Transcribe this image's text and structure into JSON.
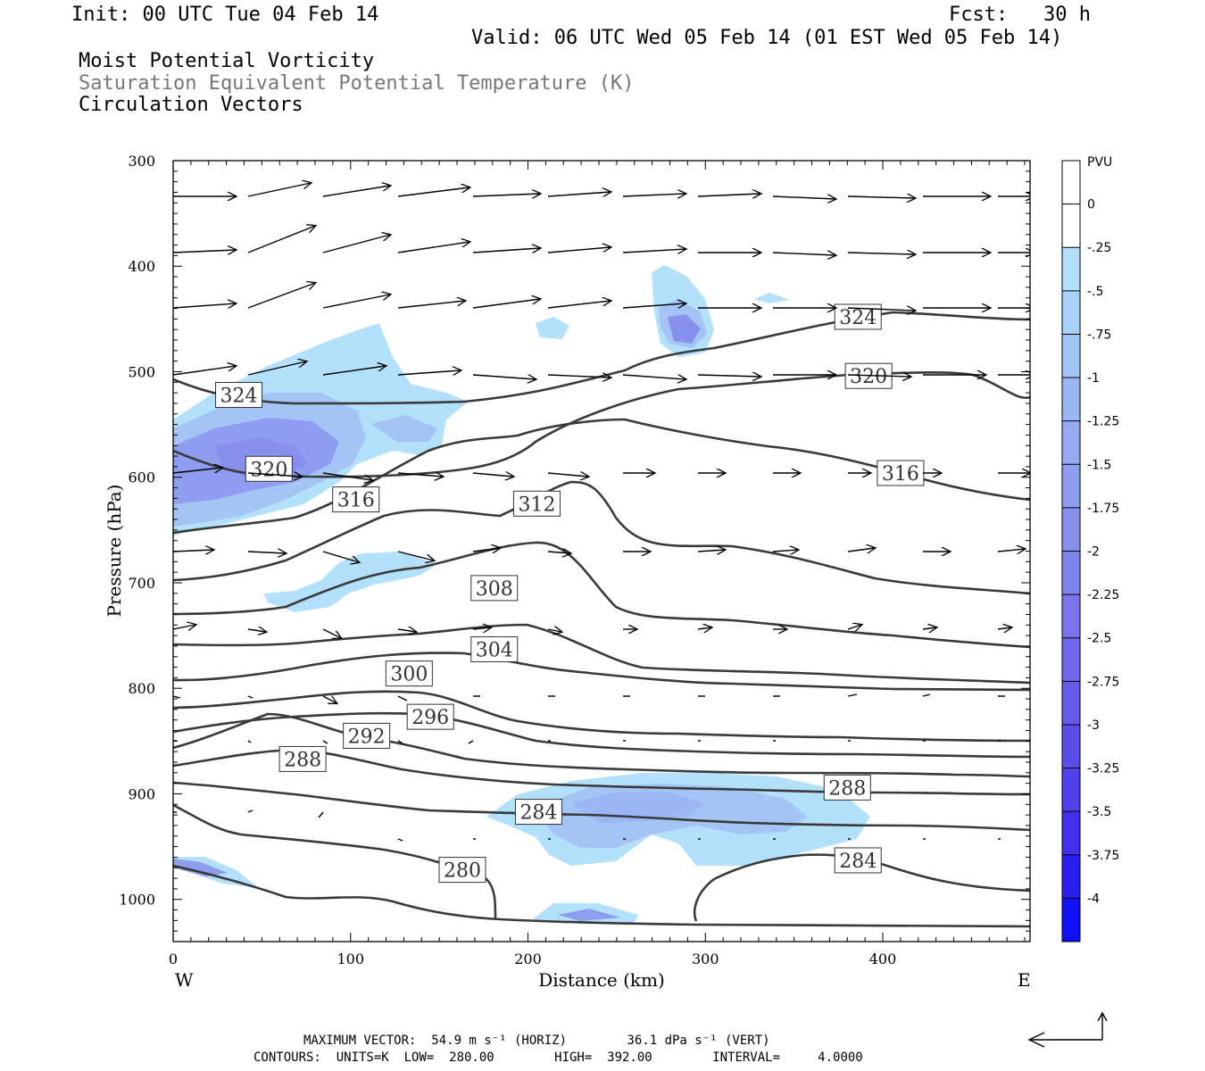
{
  "header": {
    "init": "Init: 00 UTC Tue 04 Feb 14",
    "fcst": "Fcst:   30 h",
    "valid": "Valid: 06 UTC Wed 05 Feb 14 (01 EST Wed 05 Feb 14)",
    "field1": "Moist Potential Vorticity",
    "field2": "Saturation Equivalent Potential Temperature (K)",
    "field3": "Circulation Vectors"
  },
  "footer": {
    "max_vector": "MAXIMUM VECTOR:  54.9 m s⁻¹ (HORIZ)        36.1 dPa s⁻¹ (VERT)",
    "contours": "CONTOURS:  UNITS=K  LOW=  280.00        HIGH=  392.00        INTERVAL=     4.0000"
  },
  "colors": {
    "contour": "#3a3a3a",
    "fill_light": "#b3e0fa",
    "fill_mid": "#a3c4f5",
    "fill_dark": "#8f9df0",
    "fill_darker": "#7d80ea"
  },
  "chart_data": {
    "type": "cross-section",
    "xlabel": "Distance (km)",
    "ylabel": "Pressure (hPa)",
    "xlim": [
      0,
      483
    ],
    "ylim": [
      1040,
      300
    ],
    "x_ticks": [
      0,
      100,
      200,
      300,
      400
    ],
    "y_ticks": [
      300,
      400,
      500,
      600,
      700,
      800,
      900,
      1000
    ],
    "x_end_labels": {
      "left": "W",
      "right": "E"
    },
    "contour_labels": [
      {
        "value": "324",
        "x": 37,
        "p": 522
      },
      {
        "value": "320",
        "x": 54,
        "p": 592
      },
      {
        "value": "316",
        "x": 103,
        "p": 621
      },
      {
        "value": "312",
        "x": 205,
        "p": 625
      },
      {
        "value": "308",
        "x": 181,
        "p": 705
      },
      {
        "value": "304",
        "x": 181,
        "p": 763
      },
      {
        "value": "300",
        "x": 133,
        "p": 786
      },
      {
        "value": "296",
        "x": 145,
        "p": 827
      },
      {
        "value": "292",
        "x": 109,
        "p": 845
      },
      {
        "value": "288",
        "x": 73,
        "p": 867
      },
      {
        "value": "284",
        "x": 206,
        "p": 917
      },
      {
        "value": "280",
        "x": 163,
        "p": 972
      },
      {
        "value": "324",
        "x": 386,
        "p": 448
      },
      {
        "value": "320",
        "x": 392,
        "p": 504
      },
      {
        "value": "316",
        "x": 410,
        "p": 596
      },
      {
        "value": "288",
        "x": 380,
        "p": 894
      },
      {
        "value": "284",
        "x": 386,
        "p": 963
      }
    ],
    "colorbar": {
      "unit": "PVU",
      "labels": [
        "0",
        "-.25",
        "-.5",
        "-.75",
        "-1",
        "-1.25",
        "-1.5",
        "-1.75",
        "-2",
        "-2.25",
        "-2.5",
        "-2.75",
        "-3",
        "-3.25",
        "-3.5",
        "-3.75",
        "-4"
      ],
      "colors": [
        "#ffffff",
        "#ffffff",
        "#b3e0fa",
        "#aad2f8",
        "#a3c4f5",
        "#9bb7f4",
        "#95aaf2",
        "#8f9df0",
        "#8890ee",
        "#8083ec",
        "#7876ea",
        "#6f69e9",
        "#665be8",
        "#5b4ee8",
        "#4f40ea",
        "#3f30ee",
        "#2a1ef2",
        "#1010f8"
      ]
    }
  }
}
